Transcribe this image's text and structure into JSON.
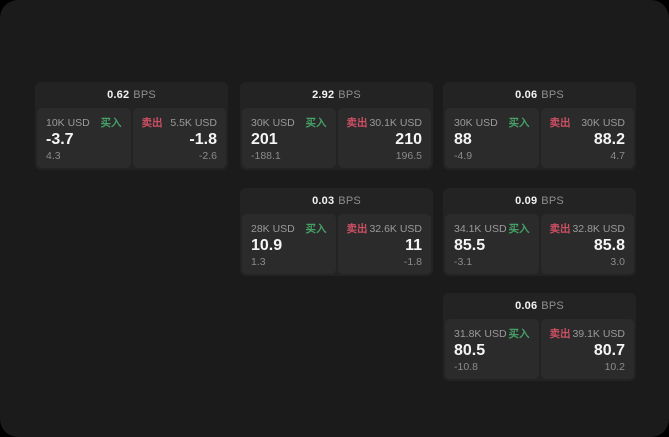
{
  "labels": {
    "buy": "买入",
    "sell": "卖出",
    "bps": "BPS"
  },
  "colors": {
    "buy_green": "#46a065",
    "sell_red": "#cb4f63",
    "panel_bg": "#1b1b1c",
    "card_bg": "#232324",
    "tile_bg": "#2b2b2c"
  },
  "cards": [
    {
      "bps": "0.62",
      "buy": {
        "size": "10K USD",
        "price": "-3.7",
        "delta": "4.3"
      },
      "sell": {
        "size": "5.5K USD",
        "price": "-1.8",
        "delta": "-2.6"
      }
    },
    {
      "bps": "2.92",
      "buy": {
        "size": "30K USD",
        "price": "201",
        "delta": "-188.1"
      },
      "sell": {
        "size": "30.1K USD",
        "price": "210",
        "delta": "196.5"
      }
    },
    {
      "bps": "0.06",
      "buy": {
        "size": "30K USD",
        "price": "88",
        "delta": "-4.9"
      },
      "sell": {
        "size": "30K USD",
        "price": "88.2",
        "delta": "4.7"
      }
    },
    {
      "bps": "0.03",
      "buy": {
        "size": "28K USD",
        "price": "10.9",
        "delta": "1.3"
      },
      "sell": {
        "size": "32.6K USD",
        "price": "11",
        "delta": "-1.8"
      }
    },
    {
      "bps": "0.09",
      "buy": {
        "size": "34.1K USD",
        "price": "85.5",
        "delta": "-3.1"
      },
      "sell": {
        "size": "32.8K USD",
        "price": "85.8",
        "delta": "3.0"
      }
    },
    {
      "bps": "0.06",
      "buy": {
        "size": "31.8K USD",
        "price": "80.5",
        "delta": "-10.8"
      },
      "sell": {
        "size": "39.1K USD",
        "price": "80.7",
        "delta": "10.2"
      }
    }
  ]
}
